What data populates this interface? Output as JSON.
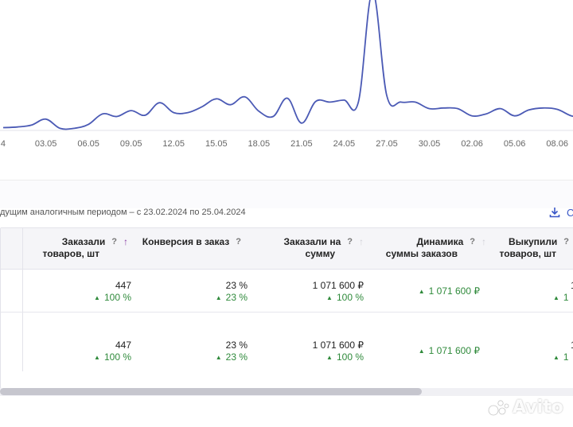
{
  "chart_data": {
    "type": "line",
    "color": "#4b5ab5",
    "x_tick_labels": [
      "4",
      "03.05",
      "06.05",
      "09.05",
      "12.05",
      "15.05",
      "18.05",
      "21.05",
      "24.05",
      "27.05",
      "30.05",
      "02.06",
      "05.06",
      "08.06"
    ],
    "x": [
      "30.04",
      "01.05",
      "02.05",
      "03.05",
      "04.05",
      "05.05",
      "06.05",
      "07.05",
      "08.05",
      "09.05",
      "10.05",
      "11.05",
      "12.05",
      "13.05",
      "14.05",
      "15.05",
      "16.05",
      "17.05",
      "18.05",
      "19.05",
      "20.05",
      "21.05",
      "22.05",
      "23.05",
      "24.05",
      "25.05",
      "26.05",
      "27.05",
      "28.05",
      "29.05",
      "30.05",
      "31.05",
      "01.06",
      "02.06",
      "03.06",
      "04.06",
      "05.06",
      "06.06",
      "07.06",
      "08.06",
      "09.06",
      "10.06"
    ],
    "series": [
      {
        "values": [
          3,
          4,
          7,
          16,
          2,
          2,
          8,
          24,
          20,
          29,
          22,
          41,
          26,
          26,
          35,
          47,
          38,
          50,
          28,
          20,
          48,
          10,
          43,
          42,
          45,
          42,
          210,
          52,
          42,
          42,
          32,
          33,
          32,
          21,
          24,
          32,
          21,
          30,
          33,
          31,
          21,
          18
        ]
      }
    ],
    "ylim": [
      0,
      210
    ],
    "grid": false,
    "legend": "none"
  },
  "compare": {
    "text": "дущим аналогичным периодом – с 23.02.2024 по 25.04.2024",
    "tail_text": "С"
  },
  "icons": {
    "download": "download-icon",
    "help": "?",
    "sort_up": "↑",
    "trend_up": "▲"
  },
  "table": {
    "columns": [
      {
        "label_line1": "Заказали",
        "label_line2": "товаров, шт",
        "help": "?",
        "sort": "↑"
      },
      {
        "label_line1": "Конверсия в заказ",
        "label_line2": "",
        "help": "?",
        "sort": ""
      },
      {
        "label_line1": "Заказали на",
        "label_line2": "сумму",
        "help": "?",
        "sort": "↑"
      },
      {
        "label_line1": "Динамика",
        "label_line2": "суммы заказов",
        "help": "?",
        "sort": "↑"
      },
      {
        "label_line1": "Выкупили",
        "label_line2": "товаров, шт",
        "help": "?",
        "sort": ""
      }
    ],
    "rows": [
      {
        "orders": "447",
        "orders_delta": "100 %",
        "conversion": "23 %",
        "conversion_delta": "23 %",
        "sum": "1 071 600 ₽",
        "sum_delta": "100 %",
        "dynamics": "1 071 600 ₽",
        "bought": "1",
        "bought_delta": "1"
      },
      {
        "orders": "447",
        "orders_delta": "100 %",
        "conversion": "23 %",
        "conversion_delta": "23 %",
        "sum": "1 071 600 ₽",
        "sum_delta": "100 %",
        "dynamics": "1 071 600 ₽",
        "bought": "1",
        "bought_delta": "1"
      }
    ]
  },
  "watermark": {
    "text": "Avito"
  }
}
